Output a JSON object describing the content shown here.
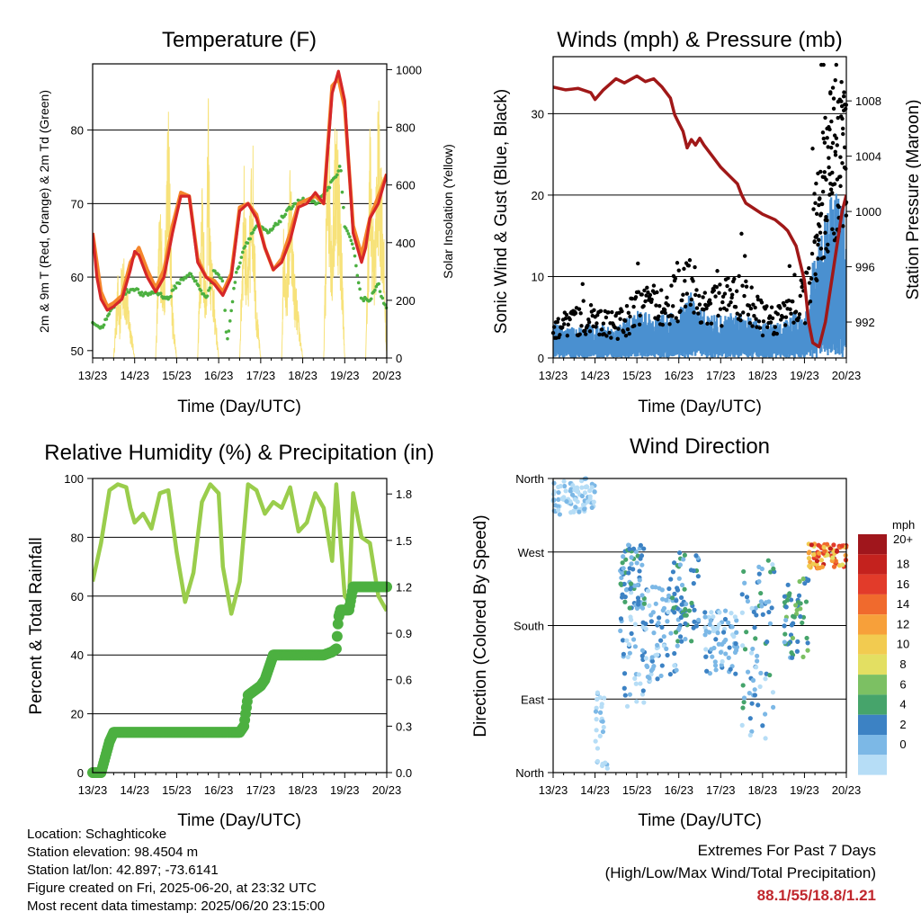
{
  "chart_data": [
    {
      "type": "line",
      "title": "Temperature (F)",
      "xlabel": "Time (Day/UTC)",
      "ylabel": "2m & 9m T (Red, Orange) & 2m Td (Green)",
      "ylabel_right": "Solar Insolation (Yellow)",
      "x_ticks": [
        "13/23",
        "14/23",
        "15/23",
        "16/23",
        "17/23",
        "18/23",
        "19/23",
        "20/23"
      ],
      "ylim": [
        49,
        89
      ],
      "y_ticks": [
        50,
        60,
        70,
        80
      ],
      "ylim_right": [
        0,
        1020
      ],
      "y_ticks_right": [
        0,
        200,
        400,
        600,
        800,
        1000
      ],
      "colors": {
        "t2m": "#d62728",
        "t9m": "#f5862c",
        "td": "#4cb040",
        "solar": "#f7e27a"
      },
      "series": [
        {
          "name": "2m T",
          "axis": "left",
          "x": [
            0,
            0.1,
            0.2,
            0.35,
            0.5,
            0.7,
            0.9,
            1.0,
            1.1,
            1.3,
            1.5,
            1.7,
            1.9,
            2.1,
            2.3,
            2.5,
            2.7,
            2.9,
            3.1,
            3.3,
            3.5,
            3.7,
            3.9,
            4.1,
            4.3,
            4.5,
            4.7,
            4.9,
            5.1,
            5.3,
            5.5,
            5.7,
            5.85,
            6.0,
            6.2,
            6.4,
            6.5,
            6.6,
            6.8,
            7.0
          ],
          "y": [
            66,
            60,
            57,
            55.5,
            56,
            57,
            61,
            63.5,
            63,
            60,
            58,
            60,
            66,
            71,
            71,
            62,
            60,
            59,
            57.5,
            60,
            69,
            70,
            68,
            64,
            61,
            62,
            65,
            69.5,
            70,
            71.5,
            70,
            85,
            88,
            84,
            66,
            62,
            64,
            68,
            70,
            74
          ]
        },
        {
          "name": "9m T",
          "axis": "left",
          "x": [
            0,
            0.2,
            0.35,
            0.5,
            0.7,
            0.9,
            1.1,
            1.3,
            1.5,
            1.7,
            1.9,
            2.1,
            2.3,
            2.5,
            2.7,
            2.9,
            3.1,
            3.3,
            3.5,
            3.7,
            3.9,
            4.1,
            4.3,
            4.5,
            4.7,
            4.9,
            5.1,
            5.3,
            5.5,
            5.7,
            5.85,
            6.0,
            6.2,
            6.4,
            6.6,
            6.8,
            7.0
          ],
          "y": [
            66,
            58,
            56,
            56.5,
            57.5,
            62,
            64,
            61,
            58.5,
            61,
            67,
            71.5,
            71,
            62.5,
            60,
            59.5,
            58,
            60.5,
            69.5,
            70,
            68.5,
            64,
            61,
            62.5,
            66,
            70,
            70.5,
            71,
            70,
            86,
            87,
            83,
            67,
            63,
            68,
            71,
            74
          ]
        },
        {
          "name": "2m Td",
          "axis": "left",
          "x": [
            0,
            0.2,
            0.5,
            0.8,
            1.0,
            1.2,
            1.5,
            1.8,
            2.0,
            2.3,
            2.5,
            2.7,
            2.9,
            3.1,
            3.2,
            3.4,
            3.6,
            3.9,
            4.2,
            4.5,
            4.8,
            5.0,
            5.3,
            5.5,
            5.7,
            5.9,
            6.0,
            6.2,
            6.4,
            6.6,
            6.8,
            6.9,
            7.0
          ],
          "y": [
            54,
            53,
            56,
            58,
            58.5,
            57.5,
            58,
            57,
            59,
            60.5,
            59,
            57,
            61,
            59.5,
            51,
            60,
            64,
            67,
            66,
            68,
            70,
            70.5,
            70,
            71,
            73,
            75,
            67,
            64,
            57,
            57,
            59,
            57,
            56
          ]
        },
        {
          "name": "Solar",
          "axis": "right",
          "x": [
            0,
            0.5,
            0.6,
            0.65,
            0.7,
            0.8,
            1.0,
            1.5,
            1.6,
            1.7,
            1.8,
            1.9,
            2.0,
            2.5,
            2.6,
            2.7,
            2.75,
            2.8,
            3.0,
            3.5,
            3.6,
            3.7,
            3.8,
            3.9,
            4.0,
            4.5,
            4.55,
            4.6,
            4.7,
            4.8,
            5.0,
            5.5,
            5.6,
            5.7,
            5.8,
            5.9,
            6.0,
            6.5,
            6.6,
            6.7,
            6.8,
            6.9,
            7.0
          ],
          "y": [
            0,
            0,
            300,
            150,
            420,
            280,
            0,
            0,
            600,
            300,
            950,
            200,
            0,
            0,
            700,
            250,
            960,
            450,
            0,
            0,
            700,
            300,
            860,
            200,
            0,
            0,
            520,
            280,
            700,
            320,
            0,
            0,
            940,
            500,
            960,
            600,
            0,
            0,
            850,
            400,
            930,
            650,
            0
          ]
        }
      ]
    },
    {
      "type": "scatter",
      "title": "Winds (mph) & Pressure (mb)",
      "xlabel": "Time (Day/UTC)",
      "ylabel": "Sonic Wind & Gust (Blue, Black)",
      "ylabel_right": "Station Pressure (Maroon)",
      "x_ticks": [
        "13/23",
        "14/23",
        "15/23",
        "16/23",
        "17/23",
        "18/23",
        "19/23",
        "20/23"
      ],
      "ylim": [
        0,
        37
      ],
      "y_ticks": [
        0,
        10,
        20,
        30
      ],
      "ylim_right": [
        989.4,
        1011.2
      ],
      "y_ticks_right": [
        992,
        996,
        1000,
        1004,
        1008
      ],
      "colors": {
        "wind": "#4a90d0",
        "gust": "#000000",
        "pressure": "#a01818"
      },
      "pressure": {
        "x": [
          0,
          0.3,
          0.6,
          0.9,
          1.0,
          1.2,
          1.5,
          1.7,
          2.0,
          2.2,
          2.4,
          2.6,
          2.8,
          2.9,
          3.0,
          3.1,
          3.2,
          3.3,
          3.4,
          3.5,
          3.6,
          3.8,
          4.0,
          4.2,
          4.4,
          4.5,
          4.6,
          4.8,
          5.0,
          5.3,
          5.5,
          5.6,
          5.8,
          6.0,
          6.1,
          6.2,
          6.35,
          6.5,
          6.7,
          6.9,
          7.0
        ],
        "y": [
          1009,
          1008.8,
          1008.9,
          1008.6,
          1008.1,
          1008.8,
          1009.6,
          1009.3,
          1009.8,
          1009.4,
          1009.6,
          1009.0,
          1008.2,
          1007.0,
          1006.4,
          1005.8,
          1004.6,
          1005.2,
          1004.8,
          1005.3,
          1004.8,
          1004.0,
          1003.2,
          1002.6,
          1002.0,
          1001.2,
          1000.6,
          1000.2,
          999.8,
          999.4,
          998.9,
          998.6,
          997.5,
          995.0,
          992.0,
          990.5,
          990.2,
          992.0,
          996.0,
          1000.0,
          1001.2
        ]
      },
      "wind_mean": {
        "x": [
          0,
          0.5,
          1,
          1.5,
          2,
          2.5,
          3,
          3.3,
          3.5,
          4,
          4.5,
          5,
          5.5,
          5.8,
          6,
          6.2,
          6.4,
          6.6,
          6.8,
          7
        ],
        "y": [
          3,
          2.5,
          3,
          2.5,
          4,
          3.5,
          4,
          5.5,
          4,
          3.5,
          4,
          3,
          3,
          4,
          3,
          8,
          11,
          13,
          14,
          12
        ]
      },
      "gust_mean": {
        "x": [
          0,
          0.5,
          1,
          1.5,
          2,
          2.5,
          3,
          3.3,
          3.5,
          4,
          4.5,
          5,
          5.5,
          5.8,
          6,
          6.2,
          6.4,
          6.6,
          6.8,
          7
        ],
        "y": [
          4,
          4.5,
          5,
          4,
          6,
          7,
          8,
          11,
          6,
          7,
          8,
          5,
          5,
          8,
          7,
          14,
          20,
          24,
          26,
          24
        ]
      }
    },
    {
      "type": "line",
      "title": "Relative Humidity (%) & Precipitation (in)",
      "xlabel": "Time (Day/UTC)",
      "ylabel": "Percent & Total Rainfall",
      "x_ticks": [
        "13/23",
        "14/23",
        "15/23",
        "16/23",
        "17/23",
        "18/23",
        "19/23",
        "20/23"
      ],
      "ylim": [
        0,
        100
      ],
      "y_ticks": [
        0,
        20,
        40,
        60,
        80,
        100
      ],
      "ylim_right": [
        0,
        1.9
      ],
      "y_ticks_right": [
        "0.0",
        "0.3",
        "0.6",
        "0.9",
        "1.2",
        "1.5",
        "1.8"
      ],
      "colors": {
        "rh": "#9acd4c",
        "precip": "#4cb040"
      },
      "series": [
        {
          "name": "RH",
          "axis": "left",
          "x": [
            0,
            0.2,
            0.4,
            0.6,
            0.8,
            0.9,
            1.0,
            1.2,
            1.4,
            1.6,
            1.8,
            2.0,
            2.2,
            2.4,
            2.6,
            2.8,
            3.0,
            3.1,
            3.3,
            3.5,
            3.7,
            3.9,
            4.1,
            4.3,
            4.5,
            4.7,
            4.9,
            5.1,
            5.3,
            5.5,
            5.7,
            5.8,
            6.0,
            6.1,
            6.2,
            6.4,
            6.6,
            6.8,
            7.0
          ],
          "y": [
            65,
            78,
            96,
            98,
            97,
            90,
            85,
            88,
            83,
            95,
            96,
            75,
            58,
            68,
            92,
            98,
            95,
            70,
            54,
            65,
            98,
            96,
            88,
            92,
            90,
            97,
            82,
            85,
            95,
            90,
            72,
            98,
            60,
            58,
            95,
            80,
            78,
            60,
            55
          ]
        },
        {
          "name": "Precip",
          "axis": "right",
          "x": [
            0,
            0.2,
            0.4,
            0.5,
            3.5,
            3.6,
            3.7,
            4.0,
            4.1,
            4.3,
            4.5,
            5.5,
            5.7,
            5.8,
            5.85,
            5.9,
            6.1,
            6.2,
            6.3,
            7.0
          ],
          "y": [
            0,
            0,
            0.2,
            0.26,
            0.26,
            0.3,
            0.5,
            0.56,
            0.6,
            0.76,
            0.76,
            0.76,
            0.78,
            0.8,
            1.0,
            1.05,
            1.05,
            1.2,
            1.2,
            1.2
          ]
        }
      ]
    },
    {
      "type": "scatter",
      "title": "Wind Direction",
      "xlabel": "Time (Day/UTC)",
      "ylabel": "Direction (Colored By Speed)",
      "x_ticks": [
        "13/23",
        "14/23",
        "15/23",
        "16/23",
        "17/23",
        "18/23",
        "19/23",
        "20/23"
      ],
      "y_ticks": [
        "North",
        "East",
        "South",
        "West",
        "North"
      ],
      "ylim": [
        0,
        360
      ],
      "colorbar_title": "mph",
      "colorbar_labels": [
        "20+",
        "18",
        "16",
        "14",
        "12",
        "10",
        "8",
        "6",
        "4",
        "2",
        "0"
      ],
      "colorbar_colors": [
        "#a0161c",
        "#c4221e",
        "#e23b2a",
        "#f06a2d",
        "#f7a03a",
        "#f2cb50",
        "#e3df62",
        "#7cc063",
        "#46a46b",
        "#3c82c4",
        "#7cb8e6",
        "#b6ddf6"
      ],
      "clusters": [
        {
          "x": [
            0,
            1
          ],
          "y": [
            315,
            360
          ],
          "speed": [
            0,
            2
          ]
        },
        {
          "x": [
            1,
            1.3
          ],
          "y": [
            0,
            100
          ],
          "speed": [
            0,
            2
          ]
        },
        {
          "x": [
            1.6,
            2.2
          ],
          "y": [
            80,
            240
          ],
          "speed": [
            0,
            4
          ]
        },
        {
          "x": [
            1.6,
            2.2
          ],
          "y": [
            200,
            280
          ],
          "speed": [
            2,
            6
          ]
        },
        {
          "x": [
            2.2,
            3.0
          ],
          "y": [
            110,
            230
          ],
          "speed": [
            0,
            4
          ]
        },
        {
          "x": [
            2.8,
            3.5
          ],
          "y": [
            160,
            270
          ],
          "speed": [
            2,
            6
          ]
        },
        {
          "x": [
            3.6,
            4.4
          ],
          "y": [
            120,
            200
          ],
          "speed": [
            0,
            4
          ]
        },
        {
          "x": [
            4.5,
            5.3
          ],
          "y": [
            40,
            260
          ],
          "speed": [
            0,
            6
          ]
        },
        {
          "x": [
            5.5,
            6.1
          ],
          "y": [
            140,
            240
          ],
          "speed": [
            2,
            8
          ]
        },
        {
          "x": [
            6.1,
            7.0
          ],
          "y": [
            250,
            280
          ],
          "speed": [
            10,
            20
          ]
        }
      ]
    }
  ],
  "info": {
    "location": "Location: Schaghticoke",
    "elevation": "Station elevation: 98.4504 m",
    "latlon": "Station lat/lon: 42.897; -73.6141",
    "created": "Figure created on Fri, 2025-06-20, at 23:32 UTC",
    "recent": "Most recent data timestamp: 2025/06/20 23:15:00"
  },
  "extremes": {
    "title": "Extremes For Past 7 Days",
    "subtitle": "(High/Low/Max Wind/Total Precipitation)",
    "values": "88.1/55/18.8/1.21"
  }
}
